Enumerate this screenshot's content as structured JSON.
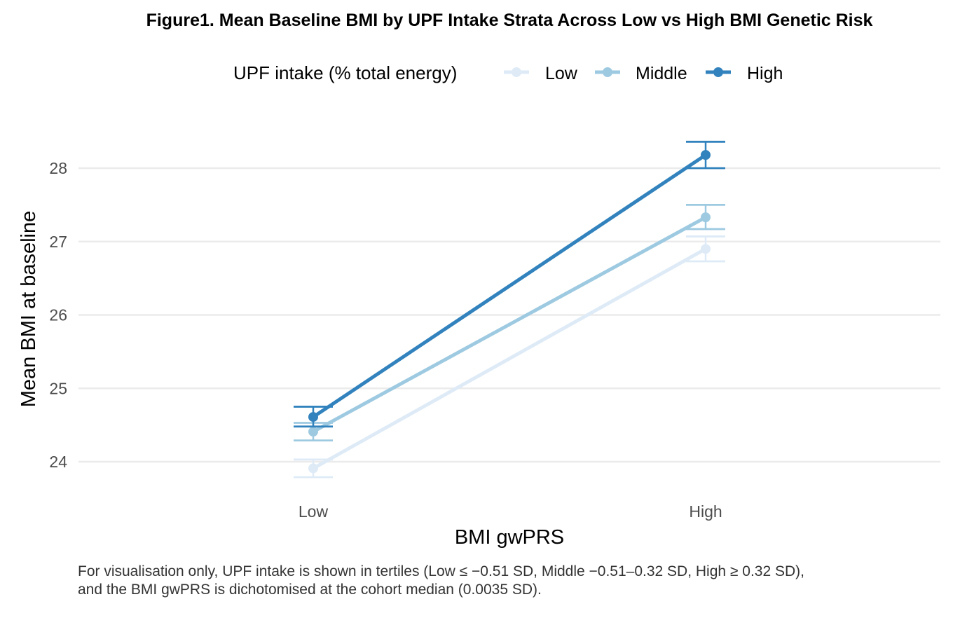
{
  "chart_data": {
    "type": "line",
    "title": "Figure1. Mean Baseline BMI by UPF Intake Strata Across Low vs High BMI Genetic Risk",
    "xlabel": "BMI gwPRS",
    "ylabel": "Mean BMI at baseline",
    "categories": [
      "Low",
      "High"
    ],
    "yticks": [
      "24",
      "25",
      "26",
      "27",
      "28"
    ],
    "ylim": [
      23.4,
      28.6
    ],
    "grid": "horizontal major",
    "legend": {
      "title": "UPF intake (% total energy)",
      "placement": "top"
    },
    "series": [
      {
        "name": "Low",
        "color": "#deebf7",
        "values": [
          23.91,
          26.9
        ],
        "ci_lower": [
          23.79,
          26.73
        ],
        "ci_upper": [
          24.03,
          27.07
        ]
      },
      {
        "name": "Middle",
        "color": "#9ecae1",
        "values": [
          24.41,
          27.33
        ],
        "ci_lower": [
          24.29,
          27.17
        ],
        "ci_upper": [
          24.53,
          27.5
        ]
      },
      {
        "name": "High",
        "color": "#3182bd",
        "values": [
          24.61,
          28.18
        ],
        "ci_lower": [
          24.48,
          28.0
        ],
        "ci_upper": [
          24.75,
          28.36
        ]
      }
    ],
    "caption": [
      "For visualisation only, UPF intake is shown in tertiles (Low ≤ −0.51 SD, Middle −0.51–0.32 SD, High ≥ 0.32 SD),",
      "and the BMI gwPRS is dichotomised at the cohort median (0.0035 SD)."
    ]
  }
}
